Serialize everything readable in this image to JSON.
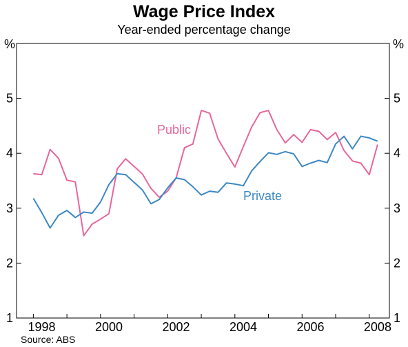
{
  "chart_data": {
    "type": "line",
    "title": "Wage Price Index",
    "subtitle": "Year-ended percentage change",
    "source": "Source: ABS",
    "ylabel_left": "%",
    "ylabel_right": "%",
    "ylim": [
      1,
      6
    ],
    "xlim": [
      1997.5,
      2008.6
    ],
    "yticks": [
      1,
      2,
      3,
      4,
      5
    ],
    "xticks": [
      "1998",
      "2000",
      "2002",
      "2004",
      "2006",
      "2008"
    ],
    "grid": false,
    "series": [
      {
        "name": "Public",
        "color": "#e8669c",
        "x": [
          1998.0,
          1998.25,
          1998.5,
          1998.75,
          1999.0,
          1999.25,
          1999.5,
          1999.75,
          2000.0,
          2000.25,
          2000.5,
          2000.75,
          2001.0,
          2001.25,
          2001.5,
          2001.75,
          2002.0,
          2002.25,
          2002.5,
          2002.75,
          2003.0,
          2003.25,
          2003.5,
          2003.75,
          2004.0,
          2004.25,
          2004.5,
          2004.75,
          2005.0,
          2005.25,
          2005.5,
          2005.75,
          2006.0,
          2006.25,
          2006.5,
          2006.75,
          2007.0,
          2007.25,
          2007.5,
          2007.75,
          2008.0,
          2008.25,
          2008.5
        ],
        "y": [
          3.63,
          3.61,
          4.07,
          3.91,
          3.51,
          3.48,
          2.5,
          2.71,
          2.8,
          2.9,
          3.72,
          3.9,
          3.76,
          3.62,
          3.36,
          3.2,
          3.31,
          3.55,
          4.1,
          4.17,
          4.78,
          4.73,
          4.26,
          4.0,
          3.75,
          4.12,
          4.48,
          4.74,
          4.78,
          4.43,
          4.19,
          4.34,
          4.2,
          4.43,
          4.4,
          4.25,
          4.38,
          4.05,
          3.86,
          3.82,
          3.61,
          4.16,
          null
        ]
      },
      {
        "name": "Private",
        "color": "#3b88c4",
        "x": [
          1998.0,
          1998.25,
          1998.5,
          1998.75,
          1999.0,
          1999.25,
          1999.5,
          1999.75,
          2000.0,
          2000.25,
          2000.5,
          2000.75,
          2001.0,
          2001.25,
          2001.5,
          2001.75,
          2002.0,
          2002.25,
          2002.5,
          2002.75,
          2003.0,
          2003.25,
          2003.5,
          2003.75,
          2004.0,
          2004.25,
          2004.5,
          2004.75,
          2005.0,
          2005.25,
          2005.5,
          2005.75,
          2006.0,
          2006.25,
          2006.5,
          2006.75,
          2007.0,
          2007.25,
          2007.5,
          2007.75,
          2008.0,
          2008.25,
          2008.5
        ],
        "y": [
          3.18,
          2.92,
          2.64,
          2.87,
          2.96,
          2.83,
          2.93,
          2.91,
          3.11,
          3.43,
          3.63,
          3.61,
          3.47,
          3.33,
          3.08,
          3.16,
          3.37,
          3.55,
          3.52,
          3.39,
          3.24,
          3.31,
          3.29,
          3.46,
          3.44,
          3.41,
          3.68,
          3.85,
          4.01,
          3.98,
          4.03,
          3.99,
          3.76,
          3.82,
          3.87,
          3.83,
          4.17,
          4.31,
          4.08,
          4.31,
          4.28,
          4.22,
          null
        ]
      }
    ]
  }
}
